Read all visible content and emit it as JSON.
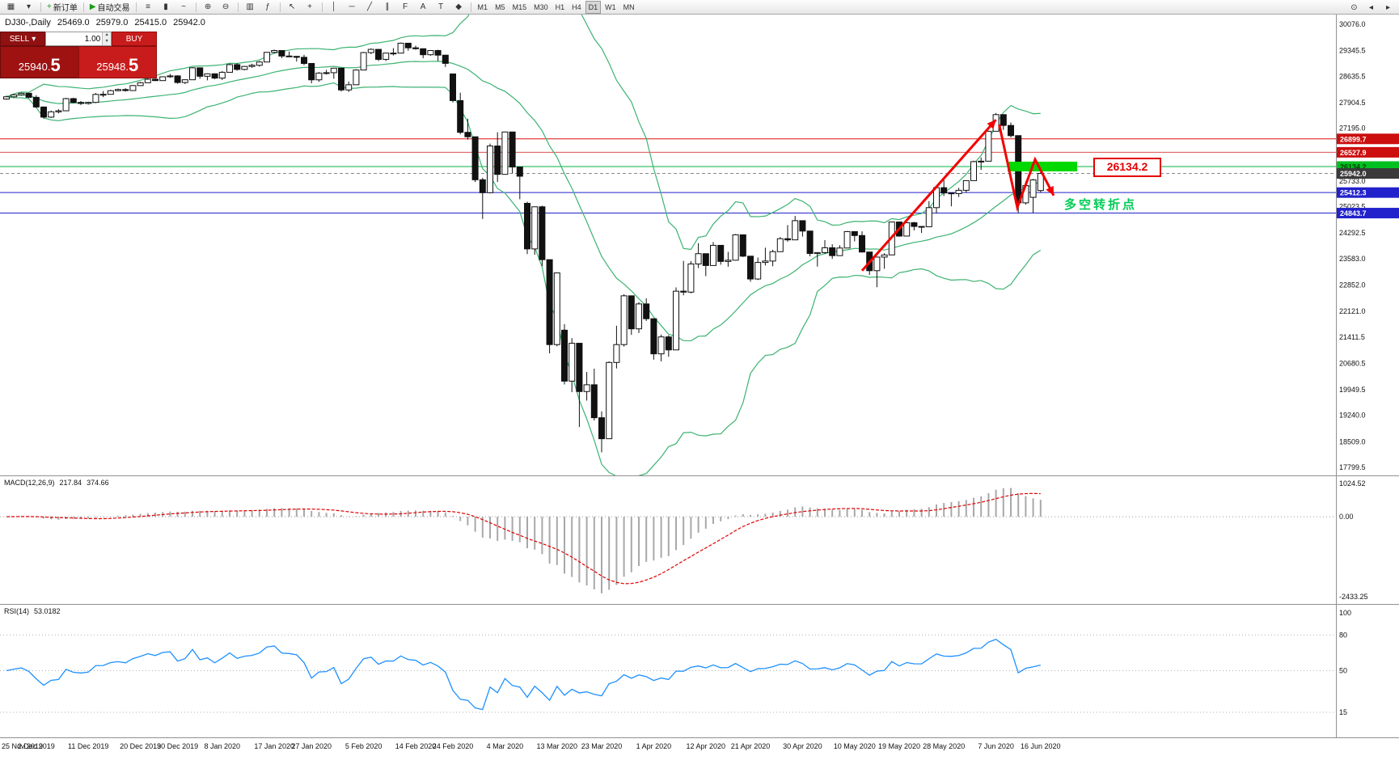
{
  "colors": {
    "bull": "#ffffff",
    "bear": "#111111",
    "candle_outline": "#111111",
    "bollinger": "#3CB371",
    "macd_bar": "#a8a8a8",
    "macd_signal": "#e00000",
    "rsi_line": "#1E90FF",
    "level_line": "#b0b0b0",
    "annotation_arrow": "#f20000",
    "annotation_green": "#00d800",
    "callout_red": "#e40000",
    "turning_text_green": "#00cc55",
    "sell_dark_red": "#9e1212",
    "buy_red": "#c81c1c",
    "axis_separator": "#909090"
  },
  "toolbar": {
    "buttons": [
      {
        "name": "new-chart",
        "glyph": "▦"
      },
      {
        "name": "chart-profiles",
        "glyph": "▾"
      },
      {
        "sep": true
      },
      {
        "name": "new-order",
        "glyph": "+",
        "glyph_color": "#1a9c1a",
        "label": "新订单"
      },
      {
        "sep": true
      },
      {
        "name": "auto-trading",
        "glyph": "▶",
        "glyph_color": "#1a9c1a",
        "label": "自动交易"
      },
      {
        "sep": true
      },
      {
        "name": "bar-chart",
        "glyph": "≡"
      },
      {
        "name": "candlestick-chart",
        "glyph": "▮"
      },
      {
        "name": "line-chart",
        "glyph": "~"
      },
      {
        "sep": true
      },
      {
        "name": "zoom-in",
        "glyph": "⊕"
      },
      {
        "name": "zoom-out",
        "glyph": "⊖"
      },
      {
        "sep": true
      },
      {
        "name": "tile-windows",
        "glyph": "▥"
      },
      {
        "name": "indicators",
        "glyph": "ƒ"
      },
      {
        "sep": true
      },
      {
        "name": "cursor",
        "glyph": "↖"
      },
      {
        "name": "crosshair",
        "glyph": "+"
      },
      {
        "sep": true
      },
      {
        "name": "vertical-line",
        "glyph": "│"
      },
      {
        "name": "horizontal-line",
        "glyph": "─"
      },
      {
        "name": "trendline",
        "glyph": "╱"
      },
      {
        "name": "equidistant-channel",
        "glyph": "∥"
      },
      {
        "name": "fibonacci",
        "glyph": "F"
      },
      {
        "name": "text",
        "glyph": "A"
      },
      {
        "name": "text-label",
        "glyph": "T"
      },
      {
        "name": "arrows-tool",
        "glyph": "◆"
      },
      {
        "sep": true
      }
    ],
    "timeframes": [
      "M1",
      "M5",
      "M15",
      "M30",
      "H1",
      "H4",
      "D1",
      "W1",
      "MN"
    ],
    "active_timeframe": "D1",
    "right_buttons": [
      {
        "name": "chart-zoom",
        "glyph": "⊙"
      },
      {
        "name": "scroll-back",
        "glyph": "◂"
      },
      {
        "name": "scroll-forward",
        "glyph": "▸"
      }
    ]
  },
  "readout": {
    "symbol_period": "DJ30-,Daily",
    "open": "25469.0",
    "high": "25979.0",
    "low": "25415.0",
    "close": "25942.0"
  },
  "one_click": {
    "sell_label": "SELL",
    "buy_label": "BUY",
    "volume": "1.00",
    "sell_price_main": "25940.",
    "sell_price_big": "5",
    "buy_price_main": "25948.",
    "buy_price_big": "5",
    "spin_up_glyph": "▴",
    "spin_down_glyph": "▾",
    "sell_caret_glyph": "▾"
  },
  "chart_data": {
    "type": "candlestick",
    "symbol": "DJ30-",
    "timeframe": "Daily",
    "price_axis": {
      "max": 30076.0,
      "min": 17799.5,
      "labels": [
        "30076.0",
        "29345.5",
        "28635.5",
        "27904.5",
        "27195.0",
        "26464.0",
        "25733.0",
        "25023.5",
        "24292.5",
        "23583.0",
        "22852.0",
        "22121.0",
        "21411.5",
        "20680.5",
        "19949.5",
        "19240.0",
        "18509.0",
        "17799.5"
      ]
    },
    "x_labels": [
      [
        0,
        "25 Nov 2019"
      ],
      [
        4,
        "2 Dec 2019"
      ],
      [
        11,
        "11 Dec 2019"
      ],
      [
        18,
        "20 Dec 2019"
      ],
      [
        23,
        "30 Dec 2019"
      ],
      [
        29,
        "8 Jan 2020"
      ],
      [
        36,
        "17 Jan 2020"
      ],
      [
        41,
        "27 Jan 2020"
      ],
      [
        48,
        "5 Feb 2020"
      ],
      [
        55,
        "14 Feb 2020"
      ],
      [
        60,
        "24 Feb 2020"
      ],
      [
        67,
        "4 Mar 2020"
      ],
      [
        74,
        "13 Mar 2020"
      ],
      [
        80,
        "23 Mar 2020"
      ],
      [
        87,
        "1 Apr 2020"
      ],
      [
        94,
        "12 Apr 2020"
      ],
      [
        100,
        "21 Apr 2020"
      ],
      [
        107,
        "30 Apr 2020"
      ],
      [
        114,
        "10 May 2020"
      ],
      [
        120,
        "19 May 2020"
      ],
      [
        126,
        "28 May 2020"
      ],
      [
        133,
        "7 Jun 2020"
      ],
      [
        139,
        "16 Jun 2020"
      ]
    ],
    "hlines": [
      {
        "price": 26899.7,
        "label": "26899.7",
        "color": "#dd1111",
        "tag_bg": "#cc0e0e",
        "tag_fg": "#ffffff"
      },
      {
        "price": 26527.9,
        "label": "26527.9",
        "color": "#e05050",
        "tag_bg": "#cc0e0e",
        "tag_fg": "#ffffff"
      },
      {
        "price": 26134.2,
        "label": "26134.2",
        "color": "#00b43c",
        "tag_bg": "#00c020",
        "tag_fg": "#063b06"
      },
      {
        "price": 25412.3,
        "label": "25412.3",
        "color": "#2222cc",
        "tag_bg": "#2222cc",
        "tag_fg": "#ffffff"
      },
      {
        "price": 24843.7,
        "label": "24843.7",
        "color": "#2222cc",
        "tag_bg": "#2222cc",
        "tag_fg": "#ffffff"
      }
    ],
    "current_price": {
      "price": 25942.0,
      "label": "25942.0",
      "color": "#8a8a8a",
      "tag_bg": "#3a3a3a"
    },
    "candles": [
      [
        28005,
        28098,
        27983,
        28066
      ],
      [
        28066,
        28146,
        28040,
        28121
      ],
      [
        28121,
        28181,
        28096,
        28164
      ],
      [
        28164,
        28174,
        28026,
        28051
      ],
      [
        28051,
        28110,
        27762,
        27783
      ],
      [
        27783,
        27800,
        27463,
        27503
      ],
      [
        27503,
        27684,
        27480,
        27650
      ],
      [
        27650,
        27723,
        27607,
        27678
      ],
      [
        27678,
        28038,
        27675,
        28015
      ],
      [
        28015,
        28040,
        27885,
        27910
      ],
      [
        27910,
        27949,
        27839,
        27882
      ],
      [
        27882,
        27930,
        27850,
        27911
      ],
      [
        27911,
        28170,
        27890,
        28132
      ],
      [
        28132,
        28225,
        28055,
        28135
      ],
      [
        28135,
        28260,
        28130,
        28236
      ],
      [
        28236,
        28295,
        28220,
        28267
      ],
      [
        28267,
        28305,
        28211,
        28239
      ],
      [
        28239,
        28392,
        28228,
        28377
      ],
      [
        28377,
        28480,
        28365,
        28455
      ],
      [
        28455,
        28576,
        28446,
        28552
      ],
      [
        28552,
        28572,
        28500,
        28515
      ],
      [
        28515,
        28630,
        28510,
        28621
      ],
      [
        28621,
        28701,
        28590,
        28645
      ],
      [
        28645,
        28664,
        28428,
        28462
      ],
      [
        28462,
        28547,
        28420,
        28538
      ],
      [
        28538,
        28890,
        28530,
        28869
      ],
      [
        28869,
        28872,
        28565,
        28635
      ],
      [
        28635,
        28715,
        28522,
        28703
      ],
      [
        28703,
        28716,
        28556,
        28584
      ],
      [
        28584,
        28780,
        28531,
        28745
      ],
      [
        28745,
        28988,
        28740,
        28957
      ],
      [
        28957,
        28998,
        28790,
        28824
      ],
      [
        28824,
        28920,
        28800,
        28907
      ],
      [
        28907,
        28982,
        28870,
        28939
      ],
      [
        28939,
        29054,
        28900,
        29030
      ],
      [
        29030,
        29310,
        29025,
        29297
      ],
      [
        29297,
        29374,
        29265,
        29348
      ],
      [
        29348,
        29350,
        29135,
        29196
      ],
      [
        29196,
        29320,
        29165,
        29186
      ],
      [
        29186,
        29200,
        29042,
        29160
      ],
      [
        29160,
        29230,
        28944,
        28990
      ],
      [
        28990,
        28998,
        28440,
        28536
      ],
      [
        28536,
        28750,
        28480,
        28723
      ],
      [
        28723,
        28813,
        28682,
        28734
      ],
      [
        28734,
        28870,
        28566,
        28859
      ],
      [
        28859,
        28872,
        28210,
        28256
      ],
      [
        28256,
        28490,
        28200,
        28400
      ],
      [
        28400,
        28828,
        28395,
        28808
      ],
      [
        28808,
        29310,
        28800,
        29291
      ],
      [
        29291,
        29409,
        29250,
        29380
      ],
      [
        29380,
        29390,
        29056,
        29103
      ],
      [
        29103,
        29287,
        29057,
        29277
      ],
      [
        29277,
        29415,
        29210,
        29276
      ],
      [
        29276,
        29568,
        29270,
        29551
      ],
      [
        29551,
        29560,
        29341,
        29423
      ],
      [
        29423,
        29481,
        29370,
        29398
      ],
      [
        29398,
        29400,
        29136,
        29232
      ],
      [
        29232,
        29360,
        29200,
        29348
      ],
      [
        29348,
        29369,
        29056,
        29220
      ],
      [
        29220,
        29226,
        28892,
        28992
      ],
      [
        28700,
        28710,
        27912,
        27961
      ],
      [
        27961,
        28180,
        27030,
        27081
      ],
      [
        27081,
        27460,
        26880,
        26958
      ],
      [
        26958,
        26965,
        25704,
        25767
      ],
      [
        25767,
        25820,
        24681,
        25409
      ],
      [
        25409,
        26768,
        25391,
        26703
      ],
      [
        26703,
        27085,
        25706,
        25917
      ],
      [
        25917,
        27102,
        25915,
        27091
      ],
      [
        27091,
        27093,
        25943,
        26121
      ],
      [
        26121,
        26122,
        25227,
        25865
      ],
      [
        25115,
        25160,
        23707,
        23851
      ],
      [
        23851,
        25021,
        23690,
        25018
      ],
      [
        25018,
        25050,
        23377,
        23553
      ],
      [
        23553,
        23555,
        20957,
        21200
      ],
      [
        21200,
        23189,
        21155,
        23186
      ],
      [
        21600,
        21768,
        20097,
        20188
      ],
      [
        20188,
        21379,
        19882,
        21237
      ],
      [
        21237,
        21240,
        18917,
        19899
      ],
      [
        19899,
        20442,
        19649,
        20087
      ],
      [
        20087,
        20531,
        19094,
        19174
      ],
      [
        19174,
        19350,
        18213,
        18592
      ],
      [
        18592,
        20737,
        18592,
        20705
      ],
      [
        20705,
        21722,
        20538,
        21200
      ],
      [
        21200,
        22595,
        21145,
        22552
      ],
      [
        22552,
        22560,
        21469,
        21637
      ],
      [
        21637,
        22378,
        21522,
        22327
      ],
      [
        22327,
        22482,
        21855,
        21917
      ],
      [
        21917,
        21920,
        20784,
        20944
      ],
      [
        20944,
        21477,
        20735,
        21413
      ],
      [
        21413,
        21457,
        20863,
        21053
      ],
      [
        21053,
        22783,
        21052,
        22680
      ],
      [
        22680,
        23520,
        22565,
        22654
      ],
      [
        22654,
        23513,
        22620,
        23434
      ],
      [
        23434,
        24009,
        23320,
        23719
      ],
      [
        23719,
        23725,
        23096,
        23391
      ],
      [
        23391,
        24041,
        23390,
        23950
      ],
      [
        23950,
        23955,
        23413,
        23504
      ],
      [
        23504,
        23770,
        23358,
        23538
      ],
      [
        23538,
        24264,
        23530,
        24242
      ],
      [
        24242,
        24245,
        23628,
        23650
      ],
      [
        23650,
        23655,
        22942,
        23018
      ],
      [
        23018,
        23613,
        22990,
        23476
      ],
      [
        23476,
        23885,
        23394,
        23515
      ],
      [
        23515,
        23827,
        23371,
        23775
      ],
      [
        23775,
        24180,
        23772,
        24134
      ],
      [
        24134,
        24511,
        24052,
        24102
      ],
      [
        24102,
        24765,
        24100,
        24634
      ],
      [
        24634,
        24640,
        24194,
        24346
      ],
      [
        24346,
        24350,
        23645,
        23724
      ],
      [
        23724,
        23760,
        23361,
        23750
      ],
      [
        23750,
        24094,
        23715,
        23883
      ],
      [
        23883,
        23980,
        23575,
        23665
      ],
      [
        23665,
        23955,
        23660,
        23876
      ],
      [
        23876,
        24349,
        23870,
        24331
      ],
      [
        24331,
        24335,
        24060,
        24222
      ],
      [
        24222,
        24337,
        23750,
        23765
      ],
      [
        23765,
        23770,
        23131,
        23248
      ],
      [
        23248,
        23633,
        22790,
        23625
      ],
      [
        23625,
        23730,
        23300,
        23685
      ],
      [
        23685,
        24602,
        23680,
        24597
      ],
      [
        24597,
        24600,
        24190,
        24207
      ],
      [
        24207,
        24586,
        24205,
        24576
      ],
      [
        24576,
        24600,
        24364,
        24474
      ],
      [
        24474,
        24482,
        24294,
        24465
      ],
      [
        24465,
        25176,
        24460,
        24995
      ],
      [
        24995,
        25561,
        24834,
        25548
      ],
      [
        25548,
        25758,
        25320,
        25401
      ],
      [
        25401,
        25406,
        25031,
        25383
      ],
      [
        25383,
        25543,
        25290,
        25475
      ],
      [
        25475,
        25750,
        25412,
        25743
      ],
      [
        25743,
        26295,
        25740,
        26270
      ],
      [
        26270,
        26384,
        26042,
        26282
      ],
      [
        26282,
        27126,
        26280,
        27111
      ],
      [
        27111,
        27617,
        27110,
        27572
      ],
      [
        27572,
        27577,
        27151,
        27272
      ],
      [
        27272,
        27355,
        26938,
        26990
      ],
      [
        26990,
        26992,
        24845,
        25128
      ],
      [
        25128,
        25726,
        25080,
        25605
      ],
      [
        25280,
        25790,
        24844,
        25763
      ],
      [
        25469,
        25979,
        25415,
        25942
      ]
    ],
    "indicators": {
      "bollinger": {
        "period": 20,
        "deviation": 2
      },
      "macd": {
        "name": "MACD(12,26,9)",
        "value_main": "217.84",
        "value_signal": "374.66",
        "scale_top": "1024.52",
        "scale_zero": "0.00",
        "scale_bottom": "-2433.25",
        "range_max": 1024.52,
        "range_min": -2433.25
      },
      "rsi": {
        "name": "RSI(14)",
        "value": "53.0182",
        "levels": [
          80,
          50,
          15
        ],
        "scale_labels": [
          "100",
          "80",
          "50",
          "15"
        ]
      }
    },
    "annotations": {
      "price_callout": "26134.2",
      "price_callout_price": 26134.2,
      "turning_point_text": "多空转折点",
      "turning_point_anchor_price": 25412.3
    }
  }
}
